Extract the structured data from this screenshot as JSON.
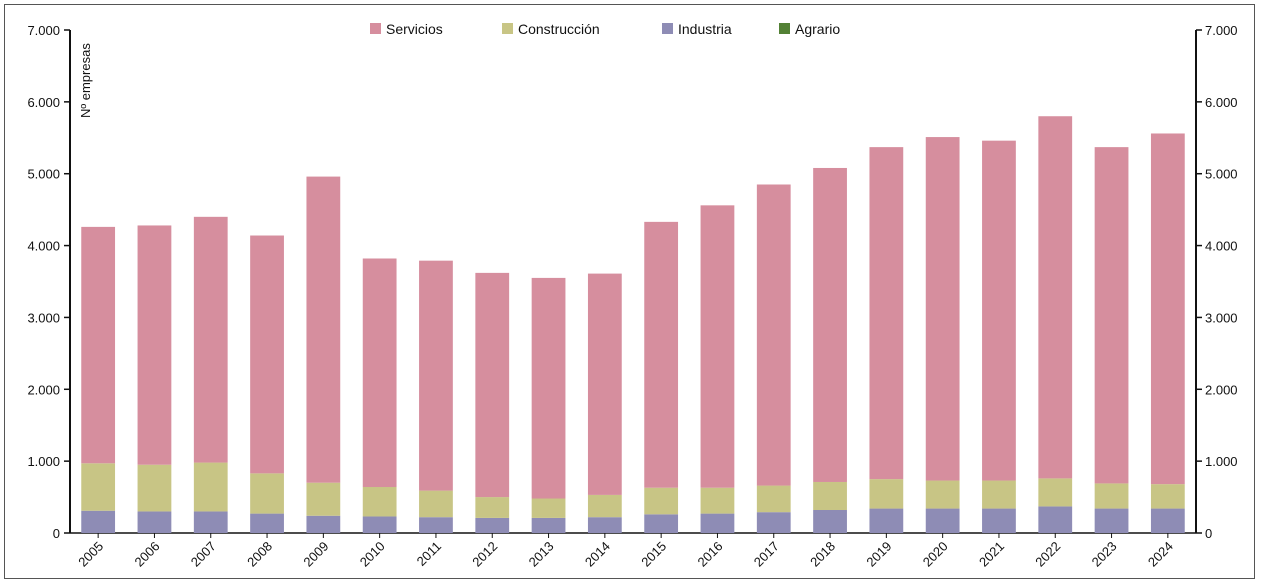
{
  "chart_data": {
    "type": "bar",
    "stacked": true,
    "ylabel": "Nº empresas",
    "ylim": [
      0,
      7000
    ],
    "yticks": [
      "0",
      "1.000",
      "2.000",
      "3.000",
      "4.000",
      "5.000",
      "6.000",
      "7.000"
    ],
    "secondary_axis": true,
    "legend_position": "top-center",
    "grid": false,
    "categories": [
      "2005",
      "2006",
      "2007",
      "2008",
      "2009",
      "2010",
      "2011",
      "2012",
      "2013",
      "2014",
      "2015",
      "2016",
      "2017",
      "2018",
      "2019",
      "2020",
      "2021",
      "2022",
      "2023",
      "2024"
    ],
    "series": [
      {
        "name": "Agrario",
        "color": "#538135",
        "values": [
          0,
          0,
          0,
          0,
          0,
          0,
          0,
          0,
          0,
          0,
          0,
          0,
          0,
          0,
          0,
          0,
          0,
          0,
          0,
          0
        ]
      },
      {
        "name": "Industria",
        "color": "#8e8cb5",
        "values": [
          310,
          300,
          300,
          270,
          240,
          230,
          220,
          210,
          210,
          220,
          260,
          270,
          290,
          320,
          340,
          340,
          340,
          370,
          340,
          340
        ]
      },
      {
        "name": "Construcción",
        "color": "#c8c585",
        "values": [
          660,
          650,
          680,
          560,
          460,
          410,
          370,
          290,
          270,
          310,
          370,
          360,
          370,
          390,
          410,
          390,
          390,
          390,
          350,
          340
        ]
      },
      {
        "name": "Servicios",
        "color": "#d68e9e",
        "values": [
          3290,
          3330,
          3420,
          3310,
          4260,
          3180,
          3200,
          3120,
          3070,
          3080,
          3700,
          3930,
          4190,
          4370,
          4620,
          4780,
          4730,
          5040,
          4680,
          4880
        ]
      }
    ],
    "legend_order": [
      "Servicios",
      "Construcción",
      "Industria",
      "Agrario"
    ]
  }
}
